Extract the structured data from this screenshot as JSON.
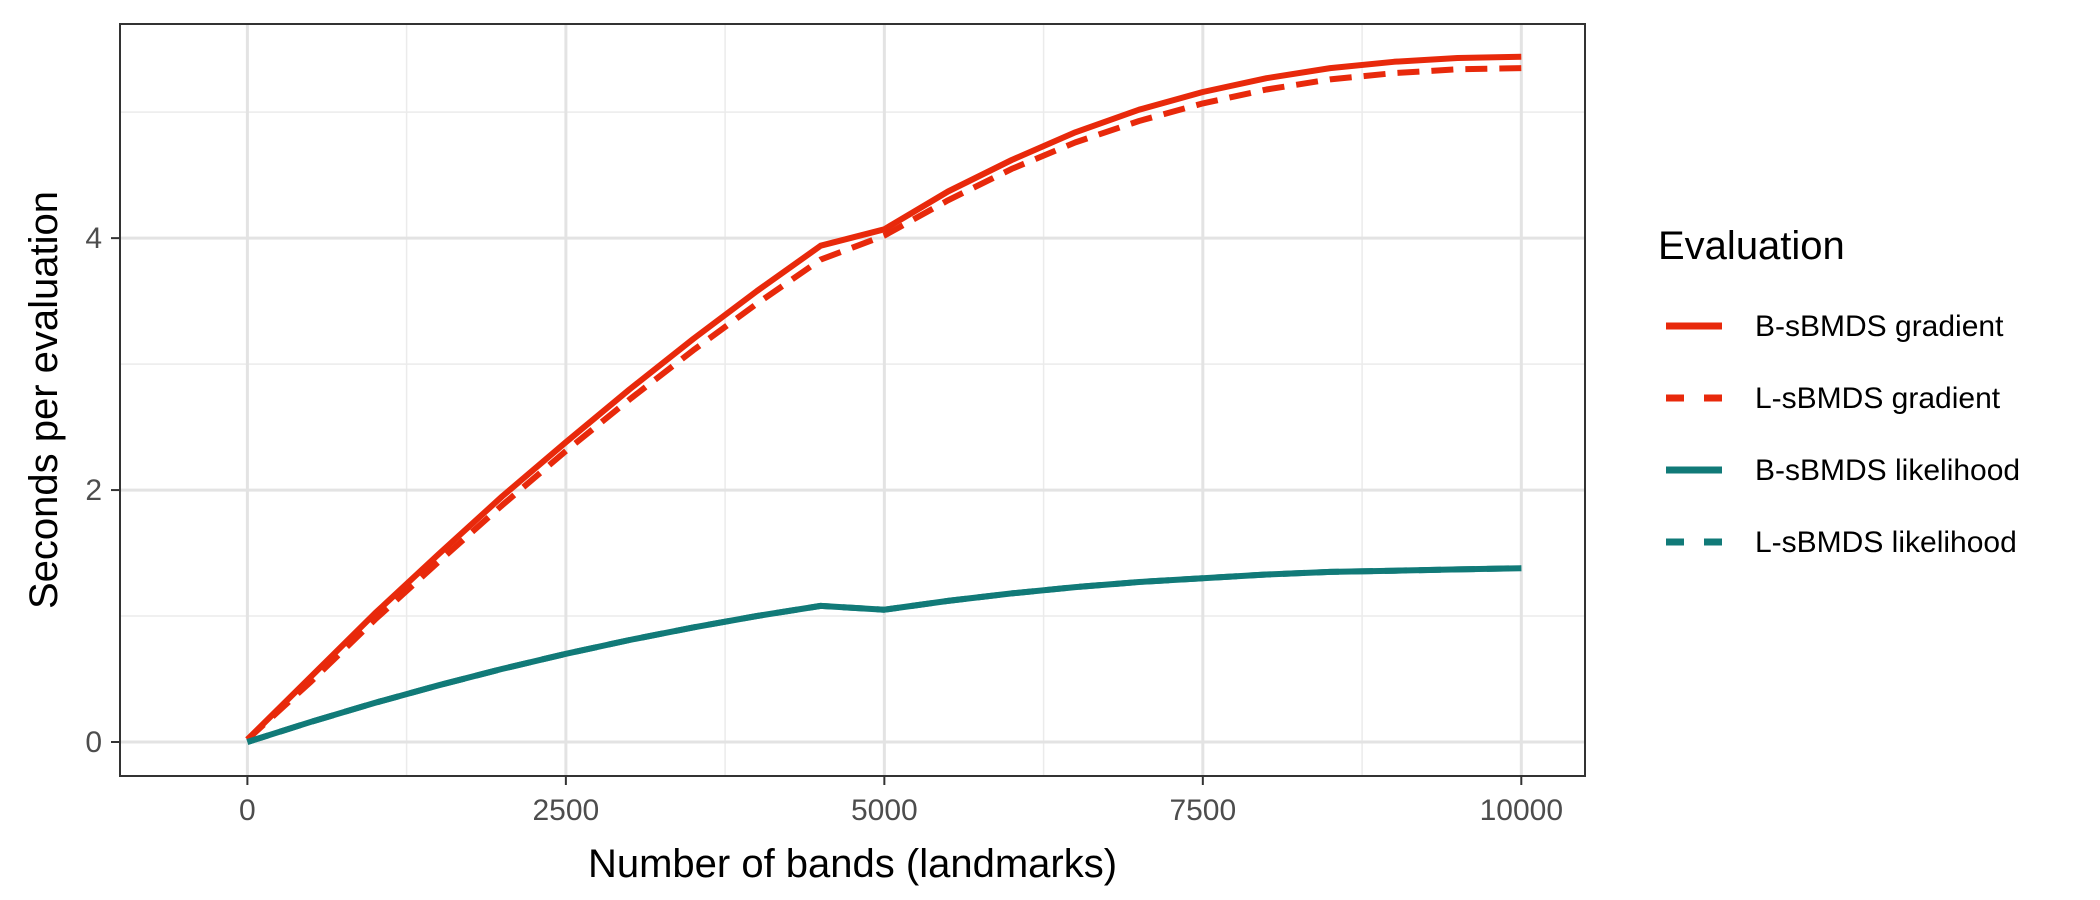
{
  "chart_data": {
    "type": "line",
    "title": "",
    "xlabel": "Number of bands (landmarks)",
    "ylabel": "Seconds per evaluation",
    "xlim": [
      -1000,
      10500
    ],
    "ylim": [
      -0.27,
      5.7
    ],
    "x_ticks": [
      0,
      2500,
      5000,
      7500,
      10000
    ],
    "x_tick_labels": [
      "0",
      "2500",
      "5000",
      "7500",
      "10000"
    ],
    "y_ticks": [
      0,
      2,
      4
    ],
    "y_tick_labels": [
      "0",
      "2",
      "4"
    ],
    "x_minor_ticks": [
      1250,
      3750,
      6250,
      8750
    ],
    "y_minor_ticks": [
      1,
      3,
      5
    ],
    "grid": true,
    "legend": {
      "title": "Evaluation",
      "position": "right"
    },
    "series": [
      {
        "name": "B-sBMDS gradient",
        "color": "#E8290B",
        "dash": "solid",
        "x": [
          0,
          500,
          1000,
          1500,
          2000,
          2500,
          3000,
          3500,
          4000,
          4500,
          5000,
          5500,
          6000,
          6500,
          7000,
          7500,
          8000,
          8500,
          9000,
          9500,
          10000
        ],
        "y": [
          0.02,
          0.52,
          1.02,
          1.49,
          1.95,
          2.38,
          2.8,
          3.2,
          3.58,
          3.94,
          4.07,
          4.37,
          4.62,
          4.84,
          5.02,
          5.16,
          5.27,
          5.35,
          5.4,
          5.43,
          5.44
        ]
      },
      {
        "name": "L-sBMDS gradient",
        "color": "#E8290B",
        "dash": "dashed",
        "x": [
          0,
          500,
          1000,
          1500,
          2000,
          2500,
          3000,
          3500,
          4000,
          4500,
          5000,
          5500,
          6000,
          6500,
          7000,
          7500,
          8000,
          8500,
          9000,
          9500,
          10000
        ],
        "y": [
          0.02,
          0.48,
          0.97,
          1.43,
          1.88,
          2.31,
          2.72,
          3.11,
          3.48,
          3.83,
          4.02,
          4.3,
          4.55,
          4.76,
          4.93,
          5.07,
          5.18,
          5.26,
          5.31,
          5.34,
          5.35
        ]
      },
      {
        "name": "B-sBMDS likelihood",
        "color": "#117A78",
        "dash": "solid",
        "x": [
          0,
          500,
          1000,
          1500,
          2000,
          2500,
          3000,
          3500,
          4000,
          4500,
          5000,
          5500,
          6000,
          6500,
          7000,
          7500,
          8000,
          8500,
          9000,
          9500,
          10000
        ],
        "y": [
          0.0,
          0.16,
          0.31,
          0.45,
          0.58,
          0.7,
          0.81,
          0.91,
          1.0,
          1.08,
          1.05,
          1.12,
          1.18,
          1.23,
          1.27,
          1.3,
          1.33,
          1.35,
          1.36,
          1.37,
          1.38
        ]
      },
      {
        "name": "L-sBMDS likelihood",
        "color": "#117A78",
        "dash": "dashed",
        "x": [
          0,
          500,
          1000,
          1500,
          2000,
          2500,
          3000,
          3500,
          4000,
          4500,
          5000,
          5500,
          6000,
          6500,
          7000,
          7500,
          8000,
          8500,
          9000,
          9500,
          10000
        ],
        "y": [
          0.0,
          0.16,
          0.31,
          0.45,
          0.58,
          0.7,
          0.81,
          0.91,
          1.0,
          1.08,
          1.05,
          1.12,
          1.18,
          1.23,
          1.27,
          1.3,
          1.33,
          1.35,
          1.36,
          1.37,
          1.38
        ]
      }
    ]
  }
}
